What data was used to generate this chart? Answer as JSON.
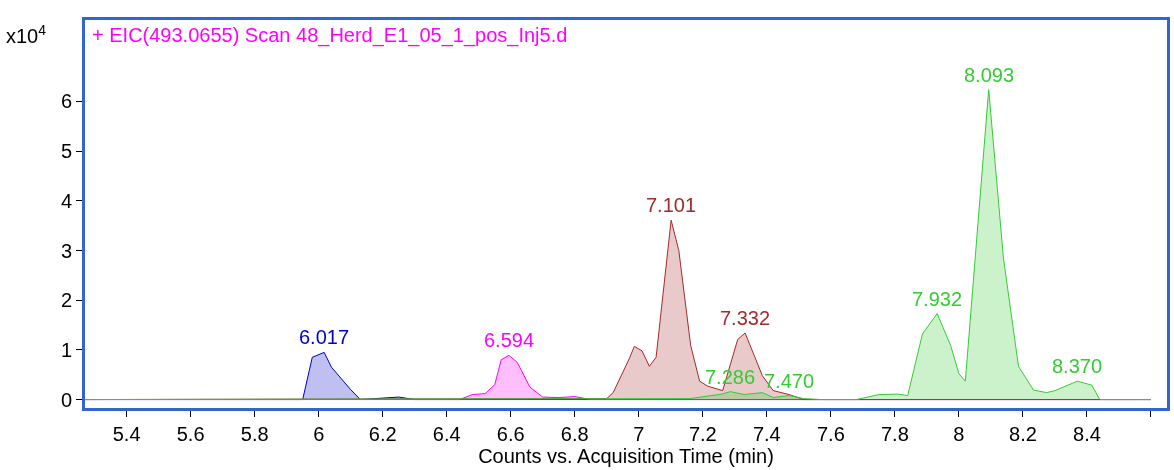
{
  "chart_data": {
    "type": "area",
    "title": "+ EIC(493.0655) Scan 48_Herd_E1_05_1_pos_Inj5.d",
    "xlabel": "Counts vs. Acquisition Time (min)",
    "ylabel": "x10$^{4}$",
    "xlim": [
      5.27,
      8.65
    ],
    "xticks": [
      5.4,
      5.6,
      5.8,
      6,
      6.2,
      6.4,
      6.6,
      6.8,
      7,
      7.2,
      7.4,
      7.6,
      7.8,
      8,
      8.2,
      8.4,
      {
        "value": 8.6,
        "label": null
      }
    ],
    "ylim": [
      -0.17,
      7.64
    ],
    "yticks": [
      0,
      1,
      2,
      3,
      4,
      5,
      6
    ],
    "annotations": [
      {
        "text": "6.017",
        "x": 6.017,
        "y": 0.95
      },
      {
        "text": "6.594",
        "x": 6.594,
        "y": 0.89
      },
      {
        "text": "7.101",
        "x": 7.101,
        "y": 3.61
      },
      {
        "text": "7.332",
        "x": 7.332,
        "y": 1.34
      },
      {
        "text": "7.286",
        "x": 7.286,
        "y": 0.16
      },
      {
        "text": "7.470",
        "x": 7.47,
        "y": 0.08
      },
      {
        "text": "7.932",
        "x": 7.932,
        "y": 1.73
      },
      {
        "text": "8.093",
        "x": 8.093,
        "y": 6.24
      },
      {
        "text": "8.370",
        "x": 8.37,
        "y": 0.37
      }
    ],
    "series": [
      {
        "color": "#0000cc",
        "x": [
          5.27,
          5.95,
          5.98,
          6.017,
          6.04,
          6.1,
          6.13,
          6.25,
          6.3,
          8.6
        ],
        "values": [
          0,
          0,
          0.85,
          0.95,
          0.65,
          0.2,
          0,
          0.05,
          0,
          0
        ]
      },
      {
        "color": "#ff00ff",
        "x": [
          5.27,
          6.44,
          6.48,
          6.52,
          6.55,
          6.57,
          6.594,
          6.62,
          6.66,
          6.7,
          6.75,
          6.8,
          6.85,
          8.6
        ],
        "values": [
          0,
          0,
          0.1,
          0.12,
          0.3,
          0.8,
          0.89,
          0.75,
          0.25,
          0.05,
          0.04,
          0.06,
          0,
          0
        ]
      },
      {
        "color": "#a52a2a",
        "x": [
          5.27,
          6.9,
          6.92,
          6.97,
          6.986,
          7.01,
          7.033,
          7.054,
          7.101,
          7.125,
          7.162,
          7.19,
          7.215,
          7.262,
          7.309,
          7.332,
          7.386,
          7.42,
          7.47,
          7.515,
          8.6
        ],
        "values": [
          0,
          0.02,
          0.14,
          0.82,
          1.07,
          0.98,
          0.67,
          0.85,
          3.61,
          3.0,
          1.09,
          0.37,
          0.27,
          0.18,
          1.21,
          1.34,
          0.48,
          0.18,
          0.1,
          0,
          0
        ]
      },
      {
        "color": "#33cc33",
        "x": [
          5.27,
          7.16,
          7.26,
          7.286,
          7.33,
          7.386,
          7.42,
          7.47,
          7.515,
          7.57,
          7.68,
          7.75,
          7.81,
          7.84,
          7.886,
          7.932,
          7.974,
          8.0,
          8.02,
          8.093,
          8.139,
          8.186,
          8.233,
          8.274,
          8.3,
          8.37,
          8.415,
          8.44,
          8.6
        ],
        "values": [
          0,
          0.02,
          0.11,
          0.16,
          0.1,
          0.14,
          0.04,
          0.08,
          0.02,
          0,
          0,
          0.1,
          0.11,
          0.08,
          1.32,
          1.73,
          1.09,
          0.52,
          0.37,
          6.24,
          2.85,
          0.67,
          0.19,
          0.14,
          0.18,
          0.37,
          0.29,
          0,
          0
        ]
      }
    ]
  }
}
